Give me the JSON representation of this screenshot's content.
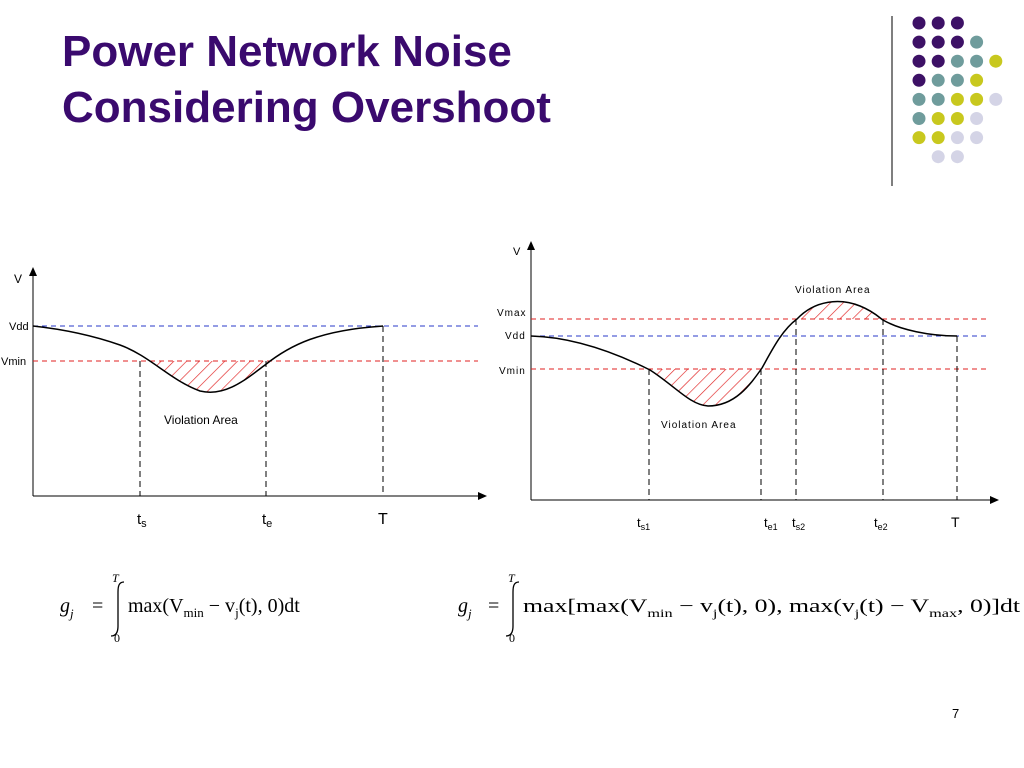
{
  "slide": {
    "title_line1": "Power Network Noise",
    "title_line2": "Considering Overshoot",
    "page_number": "7"
  },
  "colors": {
    "title": "#3a0a6e",
    "dot_purple": "#3d1166",
    "dot_teal": "#6f9c9c",
    "dot_yellow": "#c8c81e",
    "dot_lavender": "#d4d4e6",
    "vdd_line": "#2838c8",
    "violation": "#e02020"
  },
  "left_diagram": {
    "y_axis": "V",
    "vdd": "Vdd",
    "vmin": "Vmin",
    "violation": "Violation Area",
    "ts": "t",
    "ts_sub": "s",
    "te": "t",
    "te_sub": "e",
    "T": "T",
    "formula": {
      "lhs": "g",
      "lhs_sub": "j",
      "eq": "=",
      "upper": "T",
      "lower": "0",
      "body1": "max(V",
      "sub_min": "min",
      "body2": " − v",
      "sub_j": "j",
      "body3": "(t),  0)dt"
    }
  },
  "right_diagram": {
    "y_axis": "V",
    "vmax": "Vmax",
    "vdd": "Vdd",
    "vmin": "Vmin",
    "violation_top": "Violation Area",
    "violation_bottom": "Violation Area",
    "ts1": "t",
    "ts1_sub": "s1",
    "te1": "t",
    "te1_sub": "e1",
    "ts2": "t",
    "ts2_sub": "s2",
    "te2": "t",
    "te2_sub": "e2",
    "T": "T",
    "formula": {
      "lhs": "g",
      "lhs_sub": "j",
      "eq": "=",
      "upper": "T",
      "lower": "0",
      "body1": "max[max(V",
      "sub_min": "min",
      "body2": " − v",
      "sub_j": "j",
      "body3": "(t),  0),  max(v",
      "sub_j2": "j",
      "body4": "(t) − V",
      "sub_max": "max",
      "body5": ",  0)]dt"
    }
  }
}
